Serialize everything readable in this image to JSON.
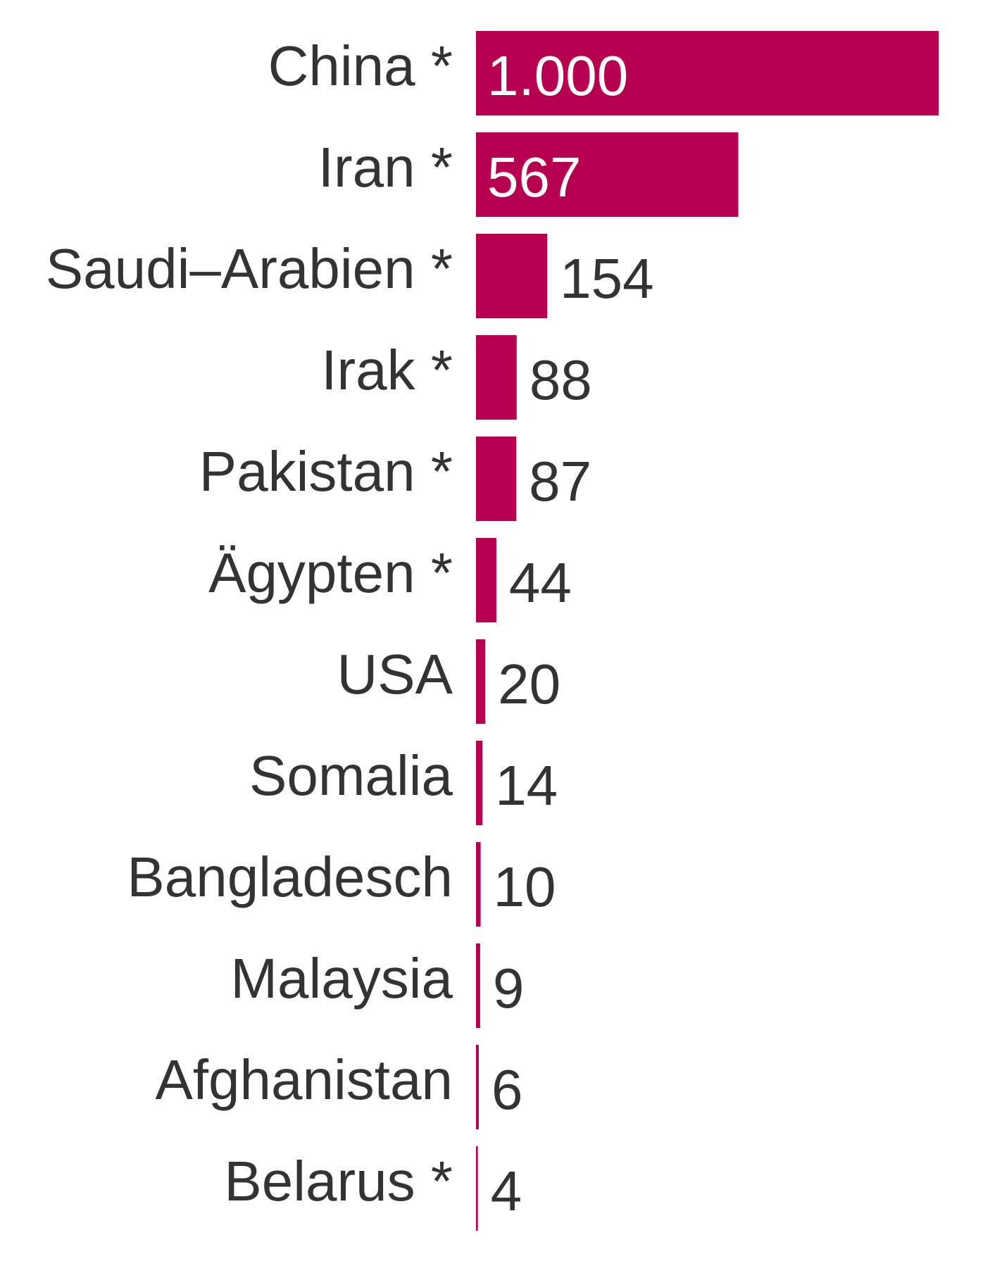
{
  "chart_data": {
    "type": "bar",
    "orientation": "horizontal",
    "categories": [
      "China *",
      "Iran *",
      "Saudi–Arabien *",
      "Irak *",
      "Pakistan *",
      "Ägypten *",
      "USA",
      "Somalia",
      "Bangladesch",
      "Malaysia",
      "Afghanistan",
      "Belarus *"
    ],
    "values": [
      1000,
      567,
      154,
      88,
      87,
      44,
      20,
      14,
      10,
      9,
      6,
      4
    ],
    "value_labels": [
      "1.000",
      "567",
      "154",
      "88",
      "87",
      "44",
      "20",
      "14",
      "10",
      "9",
      "6",
      "4"
    ],
    "color": "#b5004f"
  }
}
